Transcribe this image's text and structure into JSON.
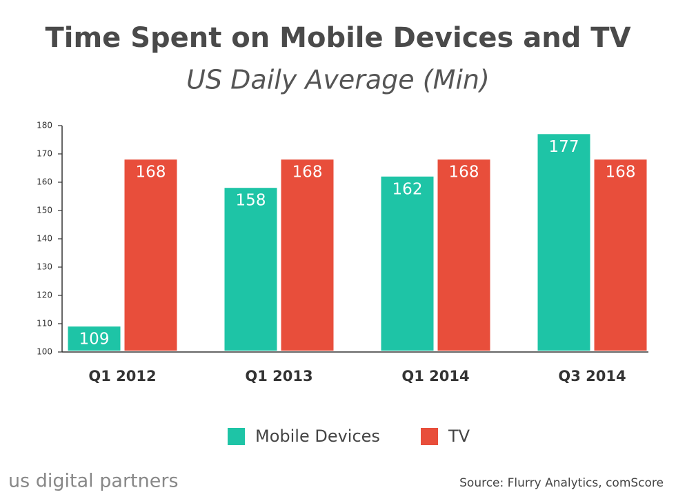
{
  "chart_data": {
    "type": "bar",
    "title": "Time Spent on Mobile Devices and TV",
    "subtitle": "US Daily Average (Min)",
    "categories": [
      "Q1 2012",
      "Q1 2013",
      "Q1 2014",
      "Q3 2014"
    ],
    "series": [
      {
        "name": "Mobile Devices",
        "color": "#1ec4a6",
        "values": [
          109,
          158,
          162,
          177
        ]
      },
      {
        "name": "TV",
        "color": "#e84e3b",
        "values": [
          168,
          168,
          168,
          168
        ]
      }
    ],
    "ylim": [
      100,
      180
    ],
    "yticks": [
      100,
      110,
      120,
      130,
      140,
      150,
      160,
      170,
      180
    ],
    "grid": false,
    "legend": "bottom",
    "source": "Source: Flurry Analytics, comScore",
    "brand": "us digital partners"
  }
}
